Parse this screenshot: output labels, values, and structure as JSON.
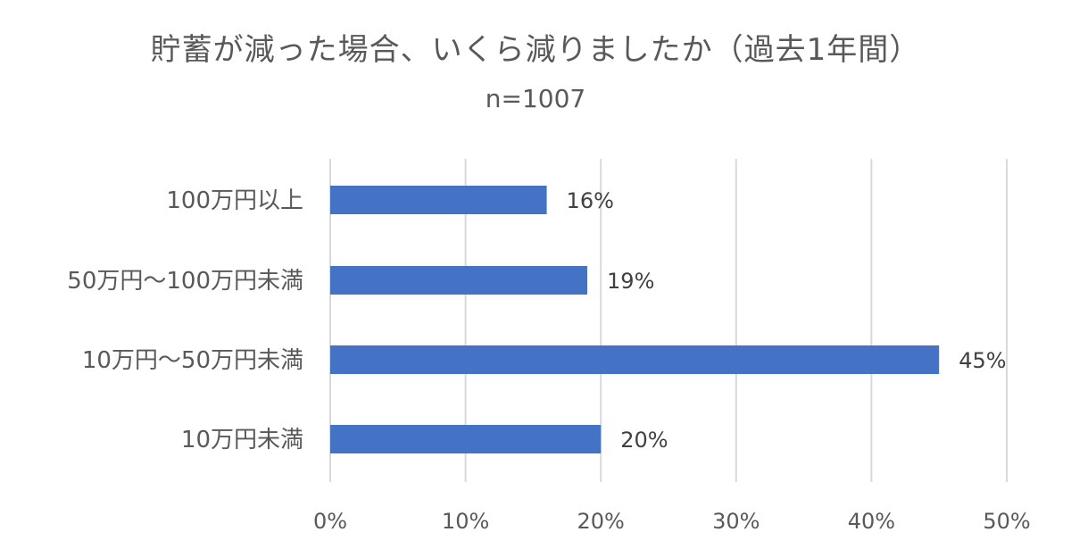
{
  "chart_data": {
    "type": "bar",
    "orientation": "horizontal",
    "title": "貯蓄が減った場合、いくら減りましたか（過去1年間）",
    "subtitle": "n=1007",
    "categories": [
      "100万円以上",
      "50万円～100万円未満",
      "10万円～50万円未満",
      "10万円未満"
    ],
    "values": [
      16,
      19,
      45,
      20
    ],
    "data_labels": [
      "16%",
      "19%",
      "45%",
      "20%"
    ],
    "xlim": [
      0,
      50
    ],
    "x_ticks": [
      0,
      10,
      20,
      30,
      40,
      50
    ],
    "x_tick_labels": [
      "0%",
      "10%",
      "20%",
      "30%",
      "40%",
      "50%"
    ],
    "xlabel": "",
    "ylabel": "",
    "grid": true,
    "legend": "none",
    "bar_color": "#4472C4",
    "grid_color": "#D9D9D9"
  }
}
